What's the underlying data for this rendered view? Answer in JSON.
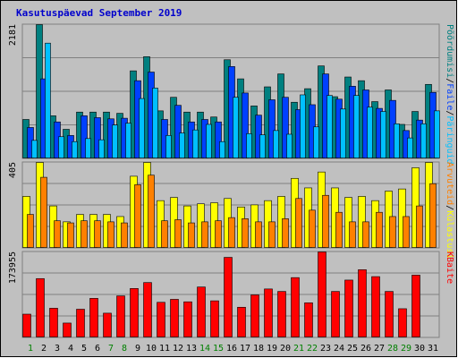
{
  "chart_data": [
    {
      "type": "bar",
      "panel": "hits",
      "title": "Kasutuspäevad September 2019",
      "ymax_label": "2181",
      "ylim": [
        0,
        2181
      ],
      "right_labels": [
        {
          "text": "Põõrdumisi",
          "color": "#008080"
        },
        {
          "text": "/",
          "color": "#000000"
        },
        {
          "text": "Faile",
          "color": "#0040ff"
        },
        {
          "text": "/",
          "color": "#000000"
        },
        {
          "text": "Päringuid",
          "color": "#00c0ff"
        }
      ],
      "categories": [
        "1",
        "2",
        "3",
        "4",
        "5",
        "6",
        "7",
        "8",
        "9",
        "10",
        "11",
        "12",
        "13",
        "14",
        "15",
        "16",
        "17",
        "18",
        "19",
        "20",
        "21",
        "22",
        "23",
        "24",
        "25",
        "26",
        "27",
        "28",
        "29",
        "30",
        "31"
      ],
      "series": [
        {
          "name": "Põõrdumisi",
          "color": "#008080",
          "values": [
            640,
            2181,
            700,
            480,
            760,
            760,
            760,
            740,
            1430,
            1660,
            780,
            1000,
            760,
            760,
            680,
            1610,
            1300,
            860,
            1170,
            1380,
            920,
            1140,
            1510,
            1010,
            1330,
            1270,
            930,
            1120,
            560,
            770,
            1210
          ]
        },
        {
          "name": "Faile",
          "color": "#0040ff",
          "values": [
            510,
            1300,
            600,
            380,
            700,
            670,
            650,
            660,
            1270,
            1410,
            640,
            870,
            600,
            640,
            600,
            1500,
            1070,
            710,
            960,
            1000,
            800,
            880,
            1380,
            970,
            1180,
            1120,
            820,
            950,
            460,
            630,
            1080
          ]
        },
        {
          "name": "Päringuid",
          "color": "#00c0ff",
          "values": [
            300,
            1880,
            360,
            280,
            330,
            310,
            550,
            580,
            980,
            1150,
            380,
            420,
            470,
            560,
            280,
            1000,
            410,
            390,
            460,
            400,
            1040,
            520,
            1030,
            810,
            1030,
            840,
            770,
            570,
            340,
            570,
            780
          ]
        }
      ]
    },
    {
      "type": "bar",
      "panel": "visits",
      "ymax_label": "405",
      "ylim": [
        0,
        405
      ],
      "right_labels": [
        {
          "text": "Arvuteid",
          "color": "#ff8000"
        },
        {
          "text": "/",
          "color": "#000000"
        },
        {
          "text": "Külastusi",
          "color": "#ffff00"
        }
      ],
      "categories": [
        "1",
        "2",
        "3",
        "4",
        "5",
        "6",
        "7",
        "8",
        "9",
        "10",
        "11",
        "12",
        "13",
        "14",
        "15",
        "16",
        "17",
        "18",
        "19",
        "20",
        "21",
        "22",
        "23",
        "24",
        "25",
        "26",
        "27",
        "28",
        "29",
        "30",
        "31"
      ],
      "series": [
        {
          "name": "Külastusi",
          "color": "#ffff00",
          "values": [
            245,
            405,
            200,
            125,
            160,
            160,
            160,
            150,
            340,
            405,
            225,
            240,
            200,
            210,
            215,
            235,
            195,
            205,
            225,
            245,
            330,
            285,
            360,
            285,
            240,
            245,
            225,
            270,
            280,
            380,
            405
          ]
        },
        {
          "name": "Arvuteid",
          "color": "#ff8000",
          "values": [
            160,
            335,
            130,
            120,
            130,
            130,
            125,
            120,
            300,
            345,
            130,
            135,
            120,
            125,
            130,
            145,
            140,
            125,
            125,
            140,
            235,
            180,
            250,
            170,
            125,
            125,
            170,
            150,
            150,
            200,
            305
          ]
        }
      ]
    },
    {
      "type": "bar",
      "panel": "kbytes",
      "ymax_label": "173955",
      "ylim": [
        0,
        173955
      ],
      "right_labels": [
        {
          "text": "KBaite",
          "color": "#ff0000"
        }
      ],
      "categories": [
        "1",
        "2",
        "3",
        "4",
        "5",
        "6",
        "7",
        "8",
        "9",
        "10",
        "11",
        "12",
        "13",
        "14",
        "15",
        "16",
        "17",
        "18",
        "19",
        "20",
        "21",
        "22",
        "23",
        "24",
        "25",
        "26",
        "27",
        "28",
        "29",
        "30",
        "31"
      ],
      "series": [
        {
          "name": "KBaite",
          "color": "#ff0000",
          "values": [
            48000,
            120000,
            60000,
            30000,
            58000,
            80000,
            50000,
            85000,
            100000,
            112000,
            72000,
            78000,
            73000,
            103000,
            75000,
            163000,
            62000,
            87000,
            99000,
            94000,
            122000,
            71000,
            173955,
            94000,
            117000,
            138000,
            124000,
            94000,
            59000,
            127000,
            0
          ]
        }
      ]
    }
  ],
  "x_axis": {
    "labels": [
      "1",
      "2",
      "3",
      "4",
      "5",
      "6",
      "7",
      "8",
      "9",
      "10",
      "11",
      "12",
      "13",
      "14",
      "15",
      "16",
      "17",
      "18",
      "19",
      "20",
      "21",
      "22",
      "23",
      "24",
      "25",
      "26",
      "27",
      "28",
      "29",
      "30",
      "31"
    ],
    "weekend_days": [
      "1",
      "7",
      "8",
      "14",
      "15",
      "21",
      "22",
      "28",
      "29"
    ],
    "weekday_color": "#000000",
    "weekend_color": "#008000"
  },
  "style": {
    "plot_bg": "#c0c0c0",
    "frame_color": "#808080",
    "grid_color": "#808080",
    "bar_outline": "#000000"
  }
}
